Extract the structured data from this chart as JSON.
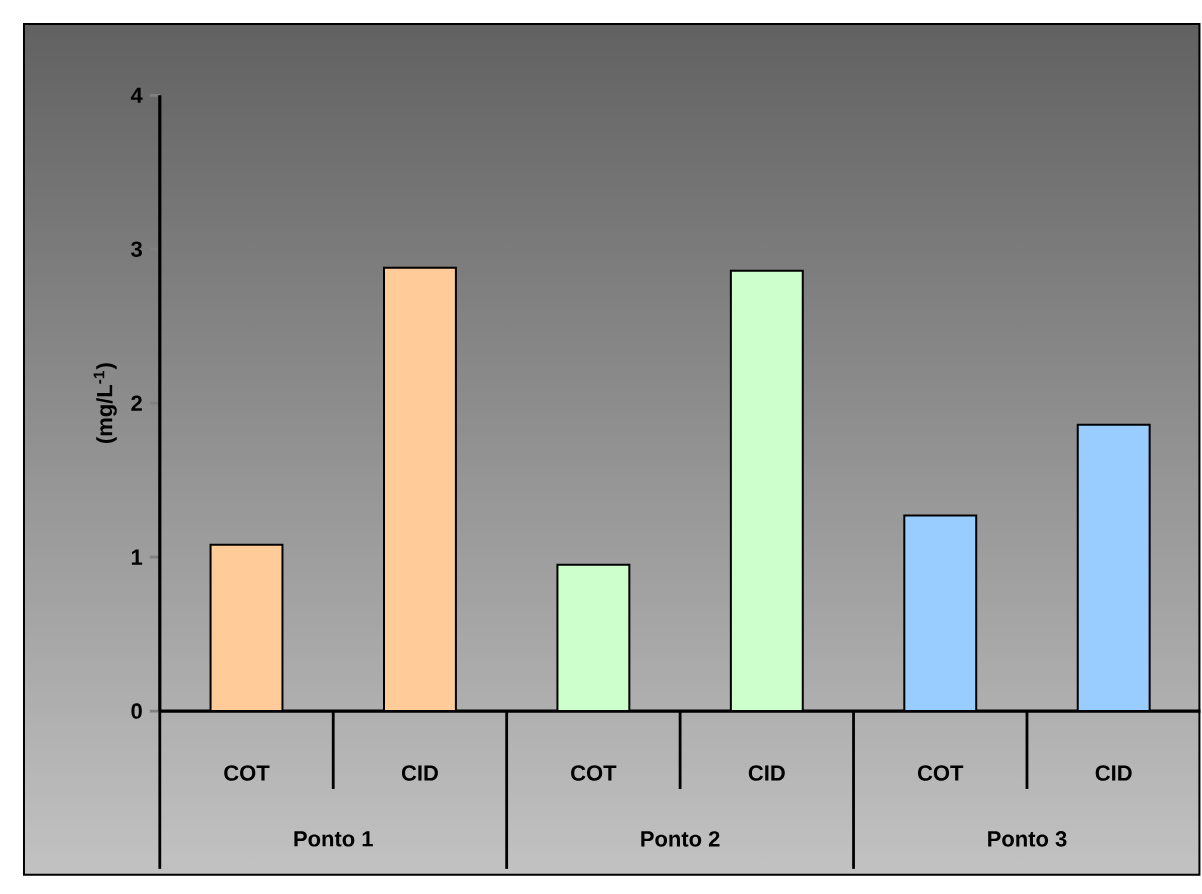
{
  "chart_data": {
    "type": "bar",
    "ylabel": "(mg/L$^{-1}$)",
    "categories": [
      "COT",
      "CID",
      "COT",
      "CID",
      "COT",
      "CID"
    ],
    "values": [
      1.08,
      2.88,
      0.95,
      2.86,
      1.27,
      1.86
    ],
    "colors": [
      "#ffcc99",
      "#ffcc99",
      "#ccffcc",
      "#ccffcc",
      "#99ccff",
      "#99ccff"
    ],
    "ylim": [
      0,
      4
    ],
    "yticks": [
      0,
      1,
      2,
      3,
      4
    ],
    "annotations": [
      "Ponto 1",
      "Ponto 2",
      "Ponto 3"
    ]
  }
}
